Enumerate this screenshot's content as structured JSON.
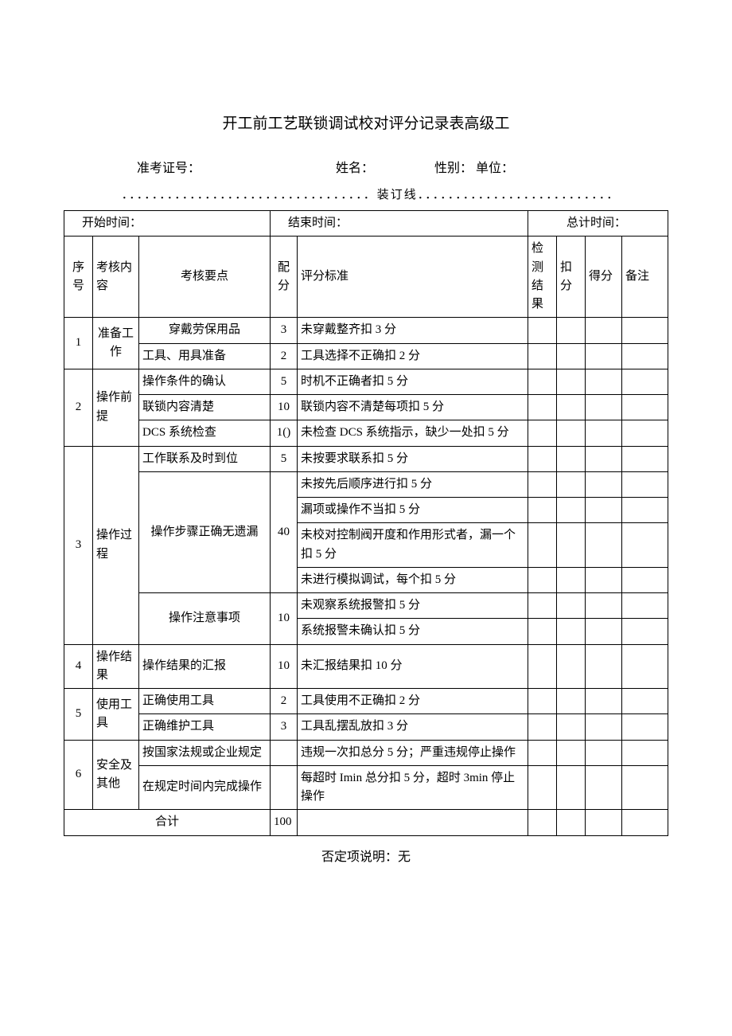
{
  "title": "开工前工艺联锁调试校对评分记录表高级工",
  "info_labels": {
    "exam": "准考证号：",
    "name": "姓名：",
    "sex": "性别：",
    "unit": "单位："
  },
  "binding_line": "．．．．．．．．．．．．．．．．．．．．．．．．．．．．．．．．．装订线．．．．．．．．．．．．．．．．．．．．．．．．．．",
  "time_labels": {
    "start": "开始时间：",
    "end": "结束时间：",
    "total": "总计时间："
  },
  "headers": {
    "seq": "序号",
    "cat": "考核内容",
    "point": "考核要点",
    "score": "配分",
    "std": "评分标准",
    "result": "检测结果",
    "deduct": "扣分",
    "got": "得分",
    "remark": "备注"
  },
  "rows": [
    {
      "seq": "1",
      "cat": "准备工作",
      "items": [
        {
          "point": "穿戴劳保用品",
          "score": "3",
          "stds": [
            "未穿戴整齐扣 3 分"
          ],
          "align": "center"
        },
        {
          "point": "工具、用具准备",
          "score": "2",
          "stds": [
            "工具选择不正确扣 2 分"
          ]
        }
      ]
    },
    {
      "seq": "2",
      "cat": "操作前提",
      "items": [
        {
          "point": "操作条件的确认",
          "score": "5",
          "stds": [
            "时机不正确者扣 5 分"
          ]
        },
        {
          "point": "联锁内容清楚",
          "score": "10",
          "stds": [
            "联锁内容不清楚每项扣 5 分"
          ]
        },
        {
          "point": "DCS 系统检查",
          "score": "1()",
          "stds": [
            "未检查 DCS 系统指示，缺少一处扣 5 分"
          ]
        }
      ]
    },
    {
      "seq": "3",
      "cat": "操作过程",
      "items": [
        {
          "point": "工作联系及时到位",
          "score": "5",
          "stds": [
            "未按要求联系扣 5 分"
          ]
        },
        {
          "point": "操作步骤正确无遗漏",
          "score": "40",
          "align": "center",
          "stds": [
            "未按先后顺序进行扣 5 分",
            "漏项或操作不当扣 5 分",
            "未校对控制阀开度和作用形式者，漏一个扣 5 分",
            "未进行模拟调试，每个扣 5 分"
          ]
        },
        {
          "point": "操作注意事项",
          "score": "10",
          "align": "center",
          "stds": [
            "未观察系统报警扣 5 分",
            "系统报警未确认扣 5 分"
          ]
        }
      ]
    },
    {
      "seq": "4",
      "cat": "操作结果",
      "items": [
        {
          "point": "操作结果的汇报",
          "score": "10",
          "stds": [
            "未汇报结果扣 10 分"
          ]
        }
      ]
    },
    {
      "seq": "5",
      "cat": "使用工具",
      "items": [
        {
          "point": "正确使用工具",
          "score": "2",
          "stds": [
            "工具使用不正确扣 2 分"
          ]
        },
        {
          "point": "正确维护工具",
          "score": "3",
          "stds": [
            "工具乱摆乱放扣 3 分"
          ]
        }
      ]
    },
    {
      "seq": "6",
      "cat": "安全及其他",
      "items": [
        {
          "point": "按国家法规或企业规定",
          "score": "",
          "stds": [
            "违规一次扣总分 5 分；严重违规停止操作"
          ]
        },
        {
          "point": "在规定时间内完成操作",
          "score": "",
          "stds": [
            "每超时 Imin 总分扣 5 分，超时 3min 停止操作"
          ]
        }
      ]
    }
  ],
  "total_label": "合计",
  "total_score": "100",
  "footnote": "否定项说明：无"
}
